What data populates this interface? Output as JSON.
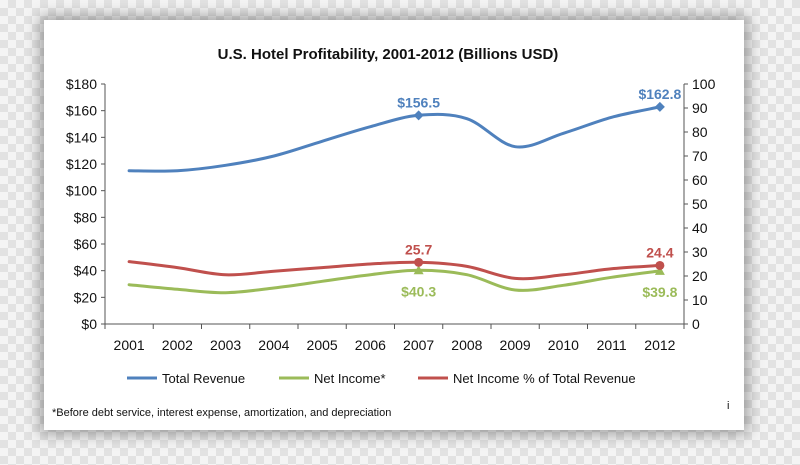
{
  "footnote": "*Before debt service, interest expense, amortization, and depreciation",
  "corner_mark": "i",
  "colors": {
    "total_revenue": "#4f81bd",
    "net_income": "#9bbb59",
    "net_income_pct": "#c0504d"
  },
  "chart_data": {
    "type": "line",
    "title": "U.S. Hotel Profitability, 2001-2012 (Billions USD)",
    "categories": [
      "2001",
      "2002",
      "2003",
      "2004",
      "2005",
      "2006",
      "2007",
      "2008",
      "2009",
      "2010",
      "2011",
      "2012"
    ],
    "y_left": {
      "ylim": [
        0,
        180
      ],
      "ticks": [
        "$0",
        "$20",
        "$40",
        "$60",
        "$80",
        "$100",
        "$120",
        "$140",
        "$160",
        "$180"
      ]
    },
    "y_right": {
      "ylim": [
        0,
        100
      ],
      "ticks": [
        "0",
        "10",
        "20",
        "30",
        "40",
        "50",
        "60",
        "70",
        "80",
        "90",
        "100"
      ]
    },
    "grid": false,
    "legend_position": "bottom",
    "series": [
      {
        "name": "Total Revenue",
        "axis": "left",
        "color": "#4f81bd",
        "marker": "diamond",
        "values": [
          115,
          115,
          119,
          126,
          137,
          148,
          156.5,
          154,
          133,
          143,
          155,
          162.8
        ]
      },
      {
        "name": "Net Income*",
        "axis": "left",
        "color": "#9bbb59",
        "marker": "triangle",
        "values": [
          29.5,
          26,
          23.5,
          27,
          32,
          37,
          40.3,
          37,
          25.5,
          29,
          35,
          39.8
        ]
      },
      {
        "name": "Net Income % of Total Revenue",
        "axis": "right",
        "color": "#c0504d",
        "marker": "circle",
        "values": [
          26,
          23.5,
          20.5,
          22,
          23.5,
          25,
          25.7,
          24,
          19,
          20.5,
          23,
          24.4
        ]
      }
    ],
    "annotations": [
      {
        "series": 0,
        "index": 6,
        "text": "$156.5",
        "position": "above"
      },
      {
        "series": 0,
        "index": 11,
        "text": "$162.8",
        "position": "above"
      },
      {
        "series": 1,
        "index": 6,
        "text": "$40.3",
        "position": "below"
      },
      {
        "series": 1,
        "index": 11,
        "text": "$39.8",
        "position": "below"
      },
      {
        "series": 2,
        "index": 6,
        "text": "25.7",
        "position": "above"
      },
      {
        "series": 2,
        "index": 11,
        "text": "24.4",
        "position": "above"
      }
    ]
  }
}
